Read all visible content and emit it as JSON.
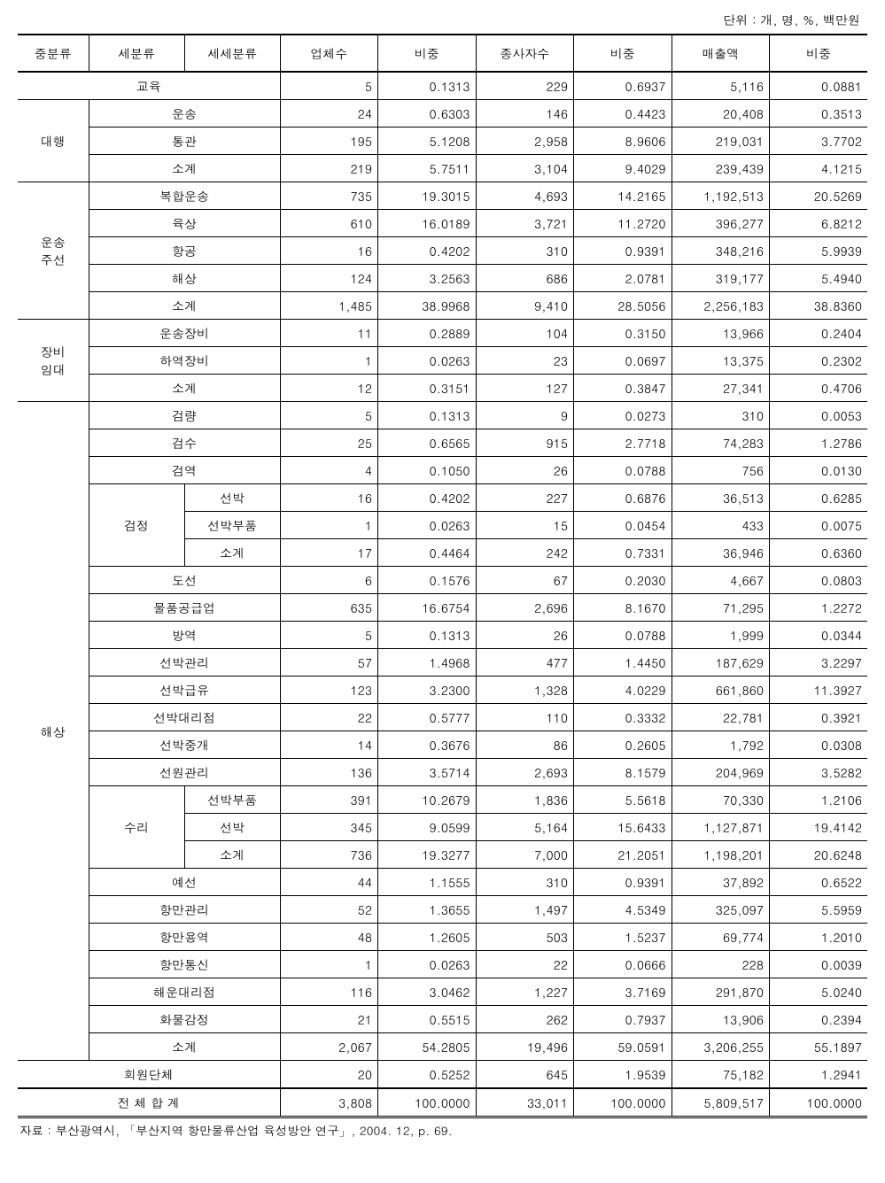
{
  "unit_label": "단위 : 개, 명, %, 백만원",
  "source_label": "자료 : 부산광역시, 「부산지역 항만물류산업 육성방안 연구」, 2004. 12, p. 69.",
  "headers": [
    "중분류",
    "세분류",
    "세세분류",
    "업체수",
    "비중",
    "종사자수",
    "비중",
    "매출액",
    "비중"
  ],
  "rows": [
    {
      "c1": "교육",
      "c1span": 1,
      "c1cols": 3,
      "v": [
        "5",
        "0.1313",
        "229",
        "0.6937",
        "5,116",
        "0.0881"
      ]
    },
    {
      "c1": "대행",
      "c1span": 3,
      "c2": "운송",
      "c2cols": 2,
      "v": [
        "24",
        "0.6303",
        "146",
        "0.4423",
        "20,408",
        "0.3513"
      ]
    },
    {
      "c2": "통관",
      "c2cols": 2,
      "v": [
        "195",
        "5.1208",
        "2,958",
        "8.9606",
        "219,031",
        "3.7702"
      ]
    },
    {
      "c2": "소계",
      "c2cols": 2,
      "v": [
        "219",
        "5.7511",
        "3,104",
        "9.4029",
        "239,439",
        "4.1215"
      ]
    },
    {
      "c1": "운송\n주선",
      "c1span": 5,
      "c2": "복합운송",
      "c2cols": 2,
      "v": [
        "735",
        "19.3015",
        "4,693",
        "14.2165",
        "1,192,513",
        "20.5269"
      ]
    },
    {
      "c2": "육상",
      "c2cols": 2,
      "v": [
        "610",
        "16.0189",
        "3,721",
        "11.2720",
        "396,277",
        "6.8212"
      ]
    },
    {
      "c2": "항공",
      "c2cols": 2,
      "v": [
        "16",
        "0.4202",
        "310",
        "0.9391",
        "348,216",
        "5.9939"
      ]
    },
    {
      "c2": "해상",
      "c2cols": 2,
      "v": [
        "124",
        "3.2563",
        "686",
        "2.0781",
        "319,177",
        "5.4940"
      ]
    },
    {
      "c2": "소계",
      "c2cols": 2,
      "v": [
        "1,485",
        "38.9968",
        "9,410",
        "28.5056",
        "2,256,183",
        "38.8360"
      ]
    },
    {
      "c1": "장비\n임대",
      "c1span": 3,
      "c2": "운송장비",
      "c2cols": 2,
      "v": [
        "11",
        "0.2889",
        "104",
        "0.3150",
        "13,966",
        "0.2404"
      ]
    },
    {
      "c2": "하역장비",
      "c2cols": 2,
      "v": [
        "1",
        "0.0263",
        "23",
        "0.0697",
        "13,375",
        "0.2302"
      ]
    },
    {
      "c2": "소계",
      "c2cols": 2,
      "v": [
        "12",
        "0.3151",
        "127",
        "0.3847",
        "27,341",
        "0.4706"
      ]
    },
    {
      "c1": "해상",
      "c1span": 24,
      "c2": "검량",
      "c2cols": 2,
      "v": [
        "5",
        "0.1313",
        "9",
        "0.0273",
        "310",
        "0.0053"
      ]
    },
    {
      "c2": "검수",
      "c2cols": 2,
      "v": [
        "25",
        "0.6565",
        "915",
        "2.7718",
        "74,283",
        "1.2786"
      ]
    },
    {
      "c2": "검역",
      "c2cols": 2,
      "v": [
        "4",
        "0.1050",
        "26",
        "0.0788",
        "756",
        "0.0130"
      ]
    },
    {
      "c2": "검정",
      "c2span": 3,
      "c3": "선박",
      "v": [
        "16",
        "0.4202",
        "227",
        "0.6876",
        "36,513",
        "0.6285"
      ]
    },
    {
      "c3": "선박부품",
      "v": [
        "1",
        "0.0263",
        "15",
        "0.0454",
        "433",
        "0.0075"
      ]
    },
    {
      "c3": "소계",
      "v": [
        "17",
        "0.4464",
        "242",
        "0.7331",
        "36,946",
        "0.6360"
      ]
    },
    {
      "c2": "도선",
      "c2cols": 2,
      "v": [
        "6",
        "0.1576",
        "67",
        "0.2030",
        "4,667",
        "0.0803"
      ]
    },
    {
      "c2": "물품공급업",
      "c2cols": 2,
      "v": [
        "635",
        "16.6754",
        "2,696",
        "8.1670",
        "71,295",
        "1.2272"
      ]
    },
    {
      "c2": "방역",
      "c2cols": 2,
      "v": [
        "5",
        "0.1313",
        "26",
        "0.0788",
        "1,999",
        "0.0344"
      ]
    },
    {
      "c2": "선박관리",
      "c2cols": 2,
      "v": [
        "57",
        "1.4968",
        "477",
        "1.4450",
        "187,629",
        "3.2297"
      ]
    },
    {
      "c2": "선박급유",
      "c2cols": 2,
      "v": [
        "123",
        "3.2300",
        "1,328",
        "4.0229",
        "661,860",
        "11.3927"
      ]
    },
    {
      "c2": "선박대리점",
      "c2cols": 2,
      "v": [
        "22",
        "0.5777",
        "110",
        "0.3332",
        "22,781",
        "0.3921"
      ]
    },
    {
      "c2": "선박중개",
      "c2cols": 2,
      "v": [
        "14",
        "0.3676",
        "86",
        "0.2605",
        "1,792",
        "0.0308"
      ]
    },
    {
      "c2": "선원관리",
      "c2cols": 2,
      "v": [
        "136",
        "3.5714",
        "2,693",
        "8.1579",
        "204,969",
        "3.5282"
      ]
    },
    {
      "c2": "수리",
      "c2span": 3,
      "c3": "선박부품",
      "v": [
        "391",
        "10.2679",
        "1,836",
        "5.5618",
        "70,330",
        "1.2106"
      ]
    },
    {
      "c3": "선박",
      "v": [
        "345",
        "9.0599",
        "5,164",
        "15.6433",
        "1,127,871",
        "19.4142"
      ]
    },
    {
      "c3": "소계",
      "v": [
        "736",
        "19.3277",
        "7,000",
        "21.2051",
        "1,198,201",
        "20.6248"
      ]
    },
    {
      "c2": "예선",
      "c2cols": 2,
      "v": [
        "44",
        "1.1555",
        "310",
        "0.9391",
        "37,892",
        "0.6522"
      ]
    },
    {
      "c2": "항만관리",
      "c2cols": 2,
      "v": [
        "52",
        "1.3655",
        "1,497",
        "4.5349",
        "325,097",
        "5.5959"
      ]
    },
    {
      "c2": "항만용역",
      "c2cols": 2,
      "v": [
        "48",
        "1.2605",
        "503",
        "1.5237",
        "69,774",
        "1.2010"
      ]
    },
    {
      "c2": "항만통신",
      "c2cols": 2,
      "v": [
        "1",
        "0.0263",
        "22",
        "0.0666",
        "228",
        "0.0039"
      ]
    },
    {
      "c2": "해운대리점",
      "c2cols": 2,
      "v": [
        "116",
        "3.0462",
        "1,227",
        "3.7169",
        "291,870",
        "5.0240"
      ]
    },
    {
      "c2": "화물감정",
      "c2cols": 2,
      "v": [
        "21",
        "0.5515",
        "262",
        "0.7937",
        "13,906",
        "0.2394"
      ]
    },
    {
      "c2": "소계",
      "c2cols": 2,
      "v": [
        "2,067",
        "54.2805",
        "19,496",
        "59.0591",
        "3,206,255",
        "55.1897"
      ]
    },
    {
      "c1": "회원단체",
      "c1span": 1,
      "c1cols": 3,
      "v": [
        "20",
        "0.5252",
        "645",
        "1.9539",
        "75,182",
        "1.2941"
      ]
    },
    {
      "c1": "전 체 합 계",
      "c1span": 1,
      "c1cols": 3,
      "grand": true,
      "v": [
        "3,808",
        "100.0000",
        "33,011",
        "100.0000",
        "5,809,517",
        "100.0000"
      ]
    }
  ]
}
